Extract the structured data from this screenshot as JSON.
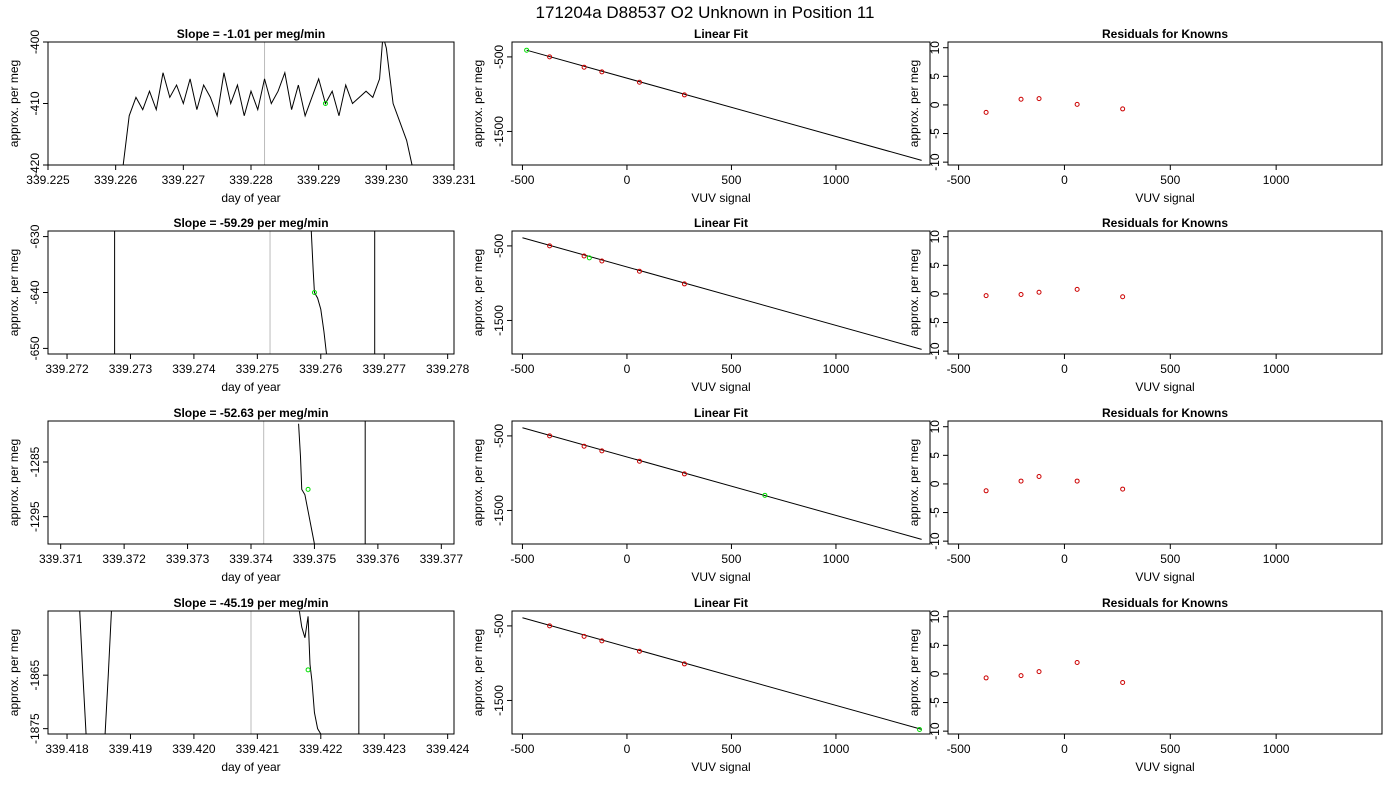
{
  "main_title": "171204a      D88537   O2 Unknown in Position  11",
  "colors": {
    "data_line": "#000000",
    "unknown_point": "#00dd00",
    "known_point": "#cc0000",
    "guide_line": "#bbbbbb"
  },
  "chart_data": [
    {
      "type": "line",
      "title": "Slope =  -1.01  per meg/min",
      "xlabel": "day of year",
      "ylabel": "approx. per meg",
      "xlim": [
        339.225,
        339.231
      ],
      "ylim": [
        -420,
        -400
      ],
      "xticks": [
        "339.225",
        "339.226",
        "339.227",
        "339.228",
        "339.229",
        "339.230",
        "339.231"
      ],
      "yticks": [
        -420,
        -410,
        -400
      ],
      "guide_lines": [
        339.2282
      ],
      "black_vlines": [],
      "x": [
        339.2261,
        339.2262,
        339.2263,
        339.2264,
        339.2265,
        339.2266,
        339.2267,
        339.2268,
        339.2269,
        339.227,
        339.2271,
        339.2272,
        339.2273,
        339.2274,
        339.2275,
        339.2276,
        339.2277,
        339.2278,
        339.2279,
        339.228,
        339.2281,
        339.2282,
        339.2283,
        339.2284,
        339.2285,
        339.2286,
        339.2287,
        339.2288,
        339.2289,
        339.229,
        339.2291,
        339.2292,
        339.2293,
        339.2294,
        339.2295,
        339.2296,
        339.2297,
        339.2298,
        339.2299,
        339.22995,
        339.23,
        339.2301,
        339.2302,
        339.2303,
        339.2304
      ],
      "y": [
        -421,
        -412,
        -409,
        -411,
        -408,
        -411,
        -405,
        -409,
        -407,
        -410,
        -406,
        -411,
        -407,
        -409,
        -412,
        -405,
        -410,
        -407,
        -412,
        -408,
        -411,
        -406,
        -410,
        -408,
        -405,
        -411,
        -407,
        -412,
        -409,
        -406,
        -410,
        -408,
        -412,
        -407,
        -410,
        -409,
        -408,
        -409,
        -406,
        -399,
        -401,
        -410,
        -413,
        -416,
        -421
      ],
      "unknown_point": [
        339.2291,
        -410
      ]
    },
    {
      "type": "scatter",
      "title": "Linear Fit",
      "xlabel": "VUV signal",
      "ylabel": "approx. per meg",
      "xlim": [
        -550,
        1450
      ],
      "ylim": [
        -1950,
        -300
      ],
      "xticks": [
        -500,
        0,
        500,
        1000
      ],
      "yticks": [
        -500,
        -1500
      ],
      "fit_line": {
        "x": [
          -480,
          1410
        ],
        "y": [
          -410,
          -1888
        ]
      },
      "known_points": {
        "x": [
          -370,
          -205,
          -120,
          60,
          275
        ],
        "y": [
          -500,
          -638,
          -701,
          -840,
          -1010
        ]
      },
      "unknown_point": [
        -480,
        -410
      ]
    },
    {
      "type": "scatter",
      "title": "Residuals for Knowns",
      "xlabel": "VUV signal",
      "ylabel": "approx. per meg",
      "xlim": [
        -550,
        1500
      ],
      "ylim": [
        -10.5,
        11
      ],
      "xticks": [
        -500,
        0,
        500,
        1000
      ],
      "yticks": [
        -10,
        -5,
        0,
        5,
        10
      ],
      "known_points": {
        "x": [
          -370,
          -205,
          -120,
          60,
          275
        ],
        "y": [
          -1.3,
          1.0,
          1.1,
          0.1,
          -0.7
        ]
      }
    },
    {
      "type": "line",
      "title": "Slope =  -59.29  per meg/min",
      "xlabel": "day of year",
      "ylabel": "approx. per meg",
      "xlim": [
        339.2717,
        339.2781
      ],
      "ylim": [
        -651,
        -629
      ],
      "xticks": [
        "339.272",
        "339.273",
        "339.274",
        "339.275",
        "339.276",
        "339.277",
        "339.278"
      ],
      "yticks": [
        -650,
        -640,
        -630
      ],
      "guide_lines": [
        339.2752
      ],
      "black_vlines": [
        339.27275,
        339.27685
      ],
      "x": [
        339.27585,
        339.27588,
        339.2759,
        339.27595,
        339.276,
        339.27605,
        339.2761
      ],
      "y": [
        -629,
        -636,
        -640,
        -641,
        -643,
        -647,
        -652
      ],
      "unknown_point": [
        339.2759,
        -640
      ]
    },
    {
      "type": "scatter",
      "title": "Linear Fit",
      "xlabel": "VUV signal",
      "ylabel": "approx. per meg",
      "xlim": [
        -550,
        1450
      ],
      "ylim": [
        -1950,
        -300
      ],
      "xticks": [
        -500,
        0,
        500,
        1000
      ],
      "yticks": [
        -500,
        -1500
      ],
      "fit_line": {
        "x": [
          -500,
          1410
        ],
        "y": [
          -390,
          -1888
        ]
      },
      "known_points": {
        "x": [
          -370,
          -205,
          -120,
          60,
          275
        ],
        "y": [
          -500,
          -635,
          -703,
          -840,
          -1010
        ]
      },
      "unknown_point": [
        -180,
        -660
      ]
    },
    {
      "type": "scatter",
      "title": "Residuals for Knowns",
      "xlabel": "VUV signal",
      "ylabel": "approx. per meg",
      "xlim": [
        -550,
        1500
      ],
      "ylim": [
        -10.5,
        11
      ],
      "xticks": [
        -500,
        0,
        500,
        1000
      ],
      "yticks": [
        -10,
        -5,
        0,
        5,
        10
      ],
      "known_points": {
        "x": [
          -370,
          -205,
          -120,
          60,
          275
        ],
        "y": [
          -0.3,
          -0.1,
          0.3,
          0.8,
          -0.5
        ]
      }
    },
    {
      "type": "line",
      "title": "Slope =  -52.63  per meg/min",
      "xlabel": "day of year",
      "ylabel": "approx. per meg",
      "xlim": [
        339.3708,
        339.3772
      ],
      "ylim": [
        -1300,
        -1277.5
      ],
      "xticks": [
        "339.371",
        "339.372",
        "339.373",
        "339.374",
        "339.375",
        "339.376",
        "339.377"
      ],
      "yticks": [
        -1295,
        -1285
      ],
      "guide_lines": [
        339.3742
      ],
      "black_vlines": [
        339.3758
      ],
      "x": [
        339.37475,
        339.37478,
        339.3748,
        339.37485,
        339.3749,
        339.37495,
        339.375
      ],
      "y": [
        -1278,
        -1284,
        -1290,
        -1291,
        -1294,
        -1297,
        -1300
      ],
      "unknown_point": [
        339.3749,
        -1290
      ]
    },
    {
      "type": "scatter",
      "title": "Linear Fit",
      "xlabel": "VUV signal",
      "ylabel": "approx. per meg",
      "xlim": [
        -550,
        1450
      ],
      "ylim": [
        -1950,
        -300
      ],
      "xticks": [
        -500,
        0,
        500,
        1000
      ],
      "yticks": [
        -500,
        -1500
      ],
      "fit_line": {
        "x": [
          -500,
          1410
        ],
        "y": [
          -390,
          -1888
        ]
      },
      "known_points": {
        "x": [
          -370,
          -205,
          -120,
          60,
          275
        ],
        "y": [
          -500,
          -638,
          -701,
          -840,
          -1010
        ]
      },
      "unknown_point": [
        660,
        -1297
      ]
    },
    {
      "type": "scatter",
      "title": "Residuals for Knowns",
      "xlabel": "VUV signal",
      "ylabel": "approx. per meg",
      "xlim": [
        -550,
        1500
      ],
      "ylim": [
        -10.5,
        11
      ],
      "xticks": [
        -500,
        0,
        500,
        1000
      ],
      "yticks": [
        -10,
        -5,
        0,
        5,
        10
      ],
      "known_points": {
        "x": [
          -370,
          -205,
          -120,
          60,
          275
        ],
        "y": [
          -1.2,
          0.5,
          1.3,
          0.5,
          -0.9
        ]
      }
    },
    {
      "type": "line",
      "title": "Slope =  -45.19  per meg/min",
      "xlabel": "day of year",
      "ylabel": "approx. per meg",
      "xlim": [
        339.4177,
        339.4241
      ],
      "ylim": [
        -1876,
        -1853
      ],
      "xticks": [
        "339.418",
        "339.419",
        "339.420",
        "339.421",
        "339.422",
        "339.423",
        "339.424"
      ],
      "yticks": [
        -1875,
        -1865
      ],
      "guide_lines": [
        339.4209
      ],
      "black_vlines": [
        339.4226
      ],
      "x": [
        339.42165,
        339.4217,
        339.42175,
        339.4218,
        339.42183,
        339.42186,
        339.4219,
        339.42195,
        339.422
      ],
      "y": [
        -1852,
        -1856,
        -1858,
        -1854,
        -1863,
        -1866,
        -1872,
        -1875,
        -1876
      ],
      "extra_segments": [
        {
          "x": [
            339.4182,
            339.41825,
            339.4183
          ],
          "y": [
            -1853,
            -1865,
            -1876
          ]
        },
        {
          "x": [
            339.4187,
            339.41865,
            339.4186
          ],
          "y": [
            -1853,
            -1865,
            -1876
          ]
        }
      ],
      "unknown_point": [
        339.4218,
        -1864
      ]
    },
    {
      "type": "scatter",
      "title": "Linear Fit",
      "xlabel": "VUV signal",
      "ylabel": "approx. per meg",
      "xlim": [
        -550,
        1450
      ],
      "ylim": [
        -1950,
        -300
      ],
      "xticks": [
        -500,
        0,
        500,
        1000
      ],
      "yticks": [
        -500,
        -1500
      ],
      "fit_line": {
        "x": [
          -500,
          1410
        ],
        "y": [
          -390,
          -1888
        ]
      },
      "known_points": {
        "x": [
          -370,
          -205,
          -120,
          60,
          275
        ],
        "y": [
          -500,
          -640,
          -701,
          -840,
          -1010
        ]
      },
      "unknown_point": [
        1400,
        -1890
      ]
    },
    {
      "type": "scatter",
      "title": "Residuals for Knowns",
      "xlabel": "VUV signal",
      "ylabel": "approx. per meg",
      "xlim": [
        -550,
        1500
      ],
      "ylim": [
        -10.5,
        11
      ],
      "xticks": [
        -500,
        0,
        500,
        1000
      ],
      "yticks": [
        -10,
        -5,
        0,
        5,
        10
      ],
      "known_points": {
        "x": [
          -370,
          -205,
          -120,
          60,
          275
        ],
        "y": [
          -0.7,
          -0.3,
          0.4,
          2.0,
          -1.5
        ]
      }
    }
  ]
}
